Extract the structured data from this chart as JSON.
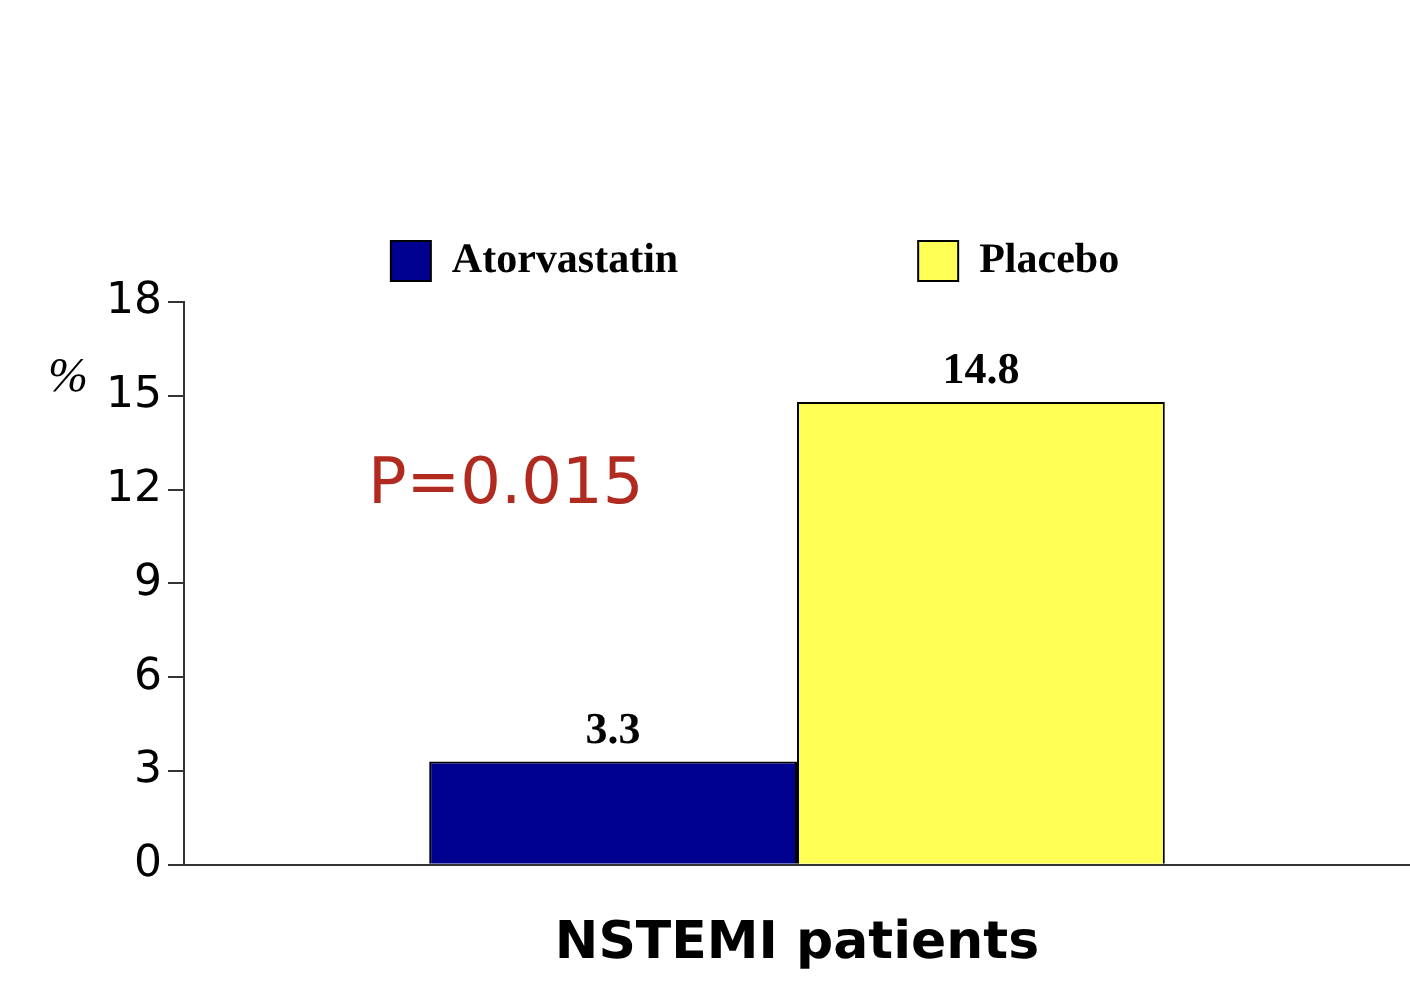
{
  "chart_data": {
    "type": "bar",
    "categories": [
      null
    ],
    "xlabel": "NSTEMI patients",
    "ylabel": "%",
    "series": [
      {
        "name": "Atorvastatin",
        "color": "#000090",
        "values": [
          3.3
        ]
      },
      {
        "name": "Placebo",
        "color": "#ffff55",
        "values": [
          14.8
        ]
      }
    ],
    "ylim": [
      0,
      18
    ],
    "yticks": [
      0,
      3,
      6,
      9,
      12,
      15,
      18
    ],
    "grid": false,
    "legend": "top",
    "data_labels": true,
    "annotations": [
      "P=0.015"
    ]
  }
}
